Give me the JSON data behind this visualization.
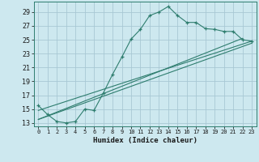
{
  "xlabel": "Humidex (Indice chaleur)",
  "bg_color": "#cde8ef",
  "grid_color": "#a8c8d4",
  "line_color": "#2e7d6e",
  "xlim": [
    -0.5,
    23.5
  ],
  "ylim": [
    12.5,
    30.5
  ],
  "xticks": [
    0,
    1,
    2,
    3,
    4,
    5,
    6,
    7,
    8,
    9,
    10,
    11,
    12,
    13,
    14,
    15,
    16,
    17,
    18,
    19,
    20,
    21,
    22,
    23
  ],
  "yticks": [
    13,
    15,
    17,
    19,
    21,
    23,
    25,
    27,
    29
  ],
  "main_x": [
    0,
    1,
    2,
    3,
    4,
    5,
    6,
    7,
    8,
    9,
    10,
    11,
    12,
    13,
    14,
    15,
    16,
    17,
    18,
    19,
    20,
    21,
    22,
    23
  ],
  "main_y": [
    15.5,
    14.2,
    13.2,
    13.0,
    13.2,
    15.0,
    14.8,
    17.3,
    20.0,
    22.5,
    25.1,
    26.5,
    28.5,
    29.0,
    29.8,
    28.5,
    27.5,
    27.5,
    26.6,
    26.5,
    26.2,
    26.2,
    25.0,
    24.8
  ],
  "line2_x": [
    0,
    22
  ],
  "line2_y": [
    13.5,
    25.2
  ],
  "line3_x": [
    0,
    23
  ],
  "line3_y": [
    14.8,
    24.8
  ],
  "line4_x": [
    0,
    23
  ],
  "line4_y": [
    13.5,
    24.5
  ]
}
